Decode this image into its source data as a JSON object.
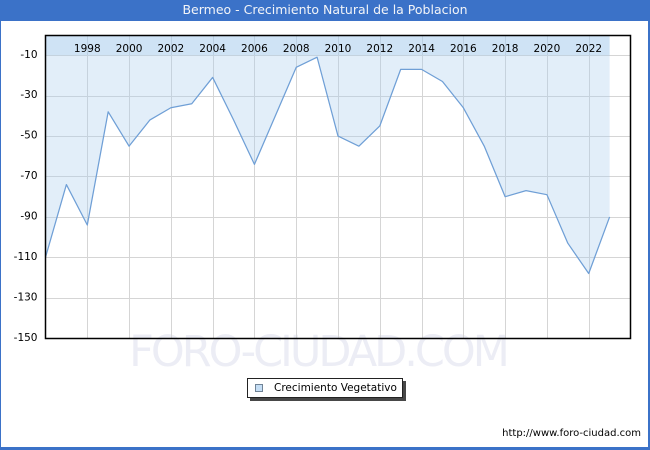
{
  "title": "Bermeo - Crecimiento Natural de la Poblacion",
  "watermark": "FORO-CIUDAD.COM",
  "legend": {
    "label": "Crecimiento Vegetativo"
  },
  "footer": {
    "url": "http://www.foro-ciudad.com"
  },
  "colors": {
    "frame_blue": "#3b72c8",
    "area_fill": "rgba(170,204,238,0.34)",
    "line": "#6f9fd6",
    "grid": "#d5d5d5",
    "plot_border": "#000000",
    "axis_text": "#000000"
  },
  "chart_data": {
    "type": "area",
    "title": "Bermeo - Crecimiento Natural de la Poblacion",
    "legend_entries": [
      "Crecimiento Vegetativo"
    ],
    "legend_position": "bottom-center",
    "grid": true,
    "x": [
      1996,
      1997,
      1998,
      1999,
      2000,
      2001,
      2002,
      2003,
      2004,
      2005,
      2006,
      2007,
      2008,
      2009,
      2010,
      2011,
      2012,
      2013,
      2014,
      2015,
      2016,
      2017,
      2018,
      2019,
      2020,
      2021,
      2022,
      2023
    ],
    "values": [
      -110,
      -74,
      -94,
      -38,
      -55,
      -42,
      -36,
      -34,
      -21,
      -42,
      -64,
      -40,
      -16,
      -11,
      -50,
      -55,
      -45,
      -17,
      -17,
      -23,
      -36,
      -55,
      -80,
      -77,
      -79,
      -103,
      -118,
      -90
    ],
    "xticks": [
      1998,
      2000,
      2002,
      2004,
      2006,
      2008,
      2010,
      2012,
      2014,
      2016,
      2018,
      2020,
      2022
    ],
    "yticks": [
      -10,
      -30,
      -50,
      -70,
      -90,
      -110,
      -130,
      -150
    ],
    "xlim": [
      1996,
      2024
    ],
    "ylim": [
      -150,
      0
    ],
    "xlabel": "",
    "ylabel": ""
  }
}
